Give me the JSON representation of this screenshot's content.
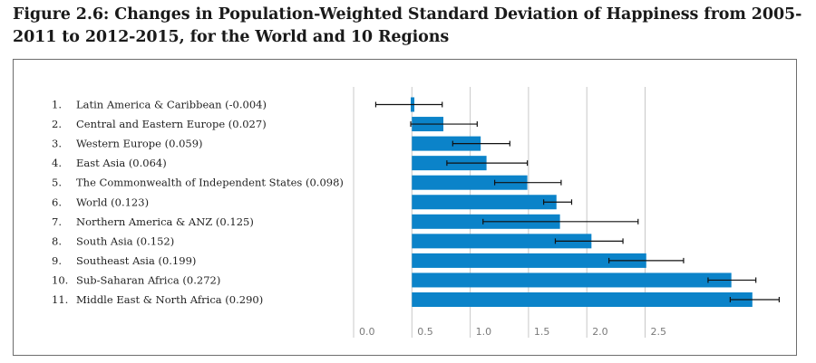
{
  "title": "Figure 2.6: Changes in Population-Weighted Standard Deviation of Happiness from 2005-2011 to 2012-2015, for the World and 10 Regions",
  "colors": {
    "bar": "#0b83c9",
    "grid": "#c8c8c8",
    "error_bar": "#111111"
  },
  "chart_data": {
    "type": "bar",
    "orientation": "horizontal",
    "title": "Figure 2.6: Changes in Population-Weighted Standard Deviation of Happiness from 2005-2011 to 2012-2015, for the World and 10 Regions",
    "xlabel": "",
    "ylabel": "",
    "xlim": [
      0.0,
      3.0
    ],
    "xticks": [
      0.0,
      0.5,
      1.0,
      1.5,
      2.0,
      2.5
    ],
    "xtick_labels": [
      "0.0",
      "0.5",
      "1.0",
      "1.5",
      "2.0",
      "2.5"
    ],
    "grid": true,
    "categories": [
      {
        "num": "1.",
        "label": "Latin America & Caribbean (-0.004)",
        "value": 0.49,
        "err_low": 0.19,
        "err_high": 0.76
      },
      {
        "num": "2.",
        "label": "Central and Eastern Europe (0.027)",
        "value": 0.77,
        "err_low": 0.49,
        "err_high": 1.06
      },
      {
        "num": "3.",
        "label": "Western Europe (0.059)",
        "value": 1.09,
        "err_low": 0.85,
        "err_high": 1.34
      },
      {
        "num": "4.",
        "label": "East Asia (0.064)",
        "value": 1.14,
        "err_low": 0.8,
        "err_high": 1.49
      },
      {
        "num": "5.",
        "label": "The Commonwealth of Independent States (0.098)",
        "value": 1.49,
        "err_low": 1.21,
        "err_high": 1.78
      },
      {
        "num": "6.",
        "label": "World (0.123)",
        "value": 1.74,
        "err_low": 1.63,
        "err_high": 1.87
      },
      {
        "num": "7.",
        "label": "Northern America & ANZ (0.125)",
        "value": 1.77,
        "err_low": 1.11,
        "err_high": 2.44
      },
      {
        "num": "8.",
        "label": "South Asia (0.152)",
        "value": 2.04,
        "err_low": 1.73,
        "err_high": 2.31
      },
      {
        "num": "9.",
        "label": "Southeast Asia (0.199)",
        "value": 2.51,
        "err_low": 2.19,
        "err_high": 2.83
      },
      {
        "num": "10.",
        "label": "Sub-Saharan Africa (0.272)",
        "value": 3.24,
        "err_low": 3.04,
        "err_high": 3.45
      },
      {
        "num": "11.",
        "label": "Middle East & North Africa (0.290)",
        "value": 3.42,
        "err_low": 3.23,
        "err_high": 3.65
      }
    ]
  }
}
